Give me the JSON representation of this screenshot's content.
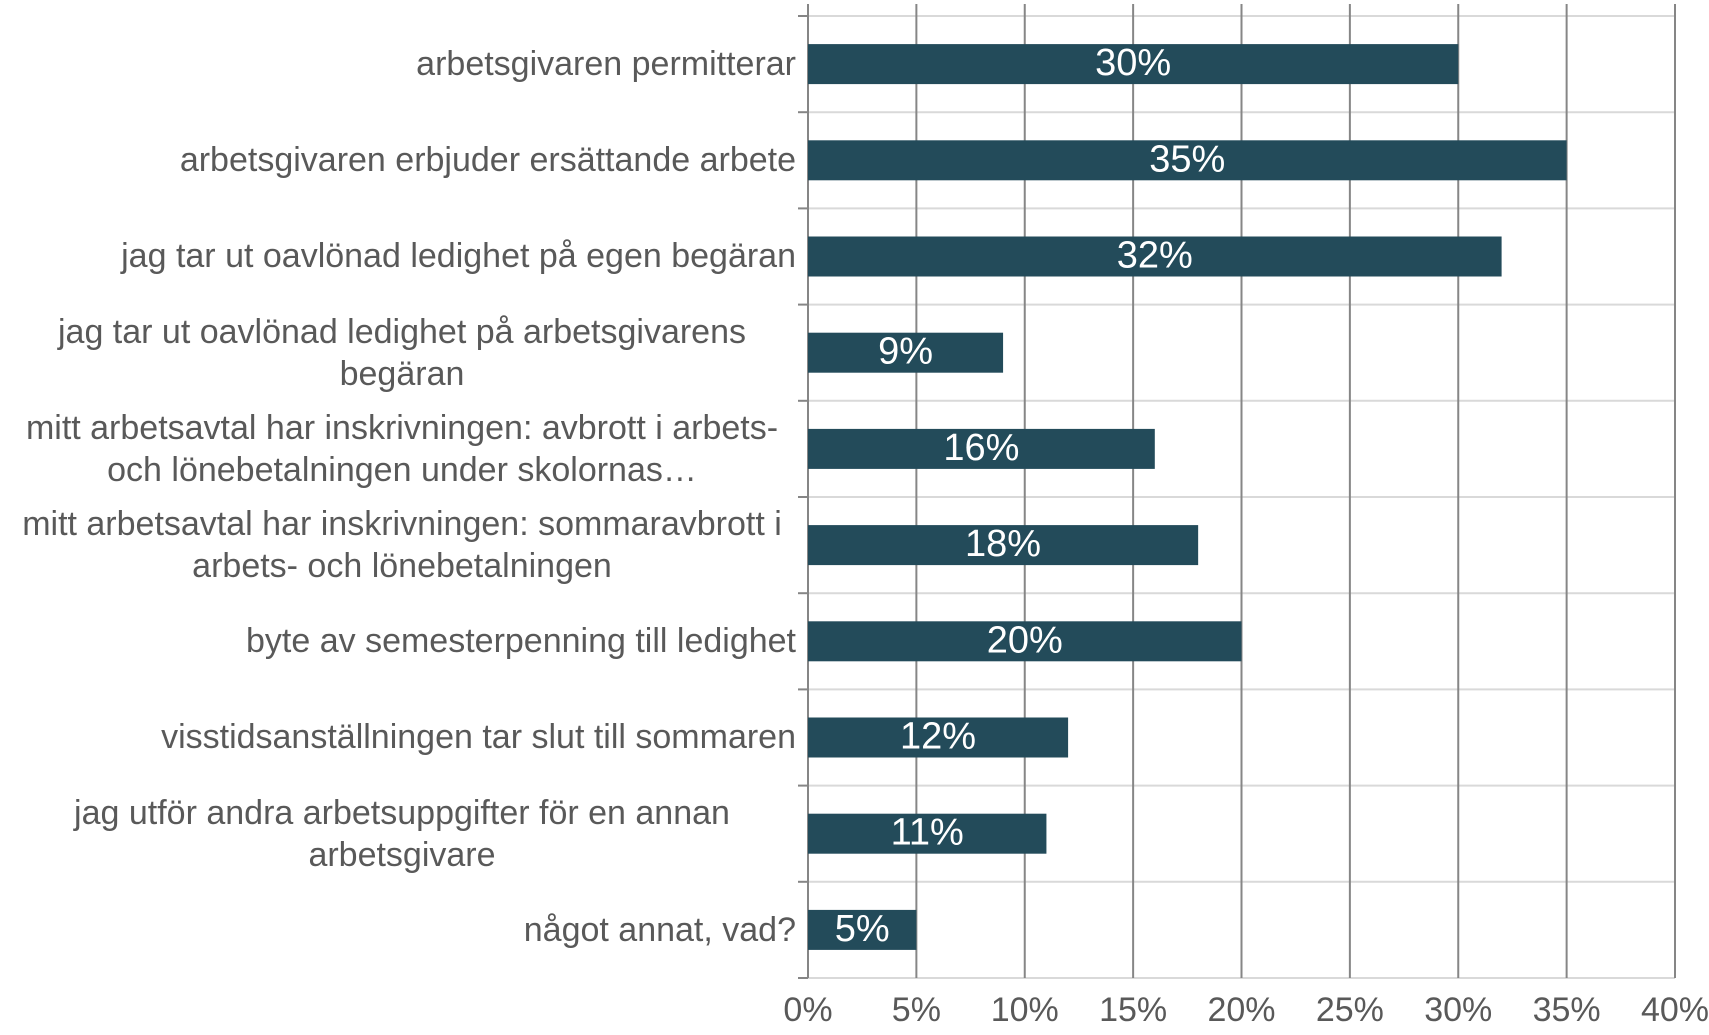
{
  "chart_data": {
    "type": "bar",
    "orientation": "horizontal",
    "categories": [
      "arbetsgivaren permitterar",
      "arbetsgivaren erbjuder ersättande arbete",
      "jag tar ut oavlönad ledighet på egen begäran",
      "jag tar ut oavlönad ledighet på arbetsgivarens begäran",
      "mitt arbetsavtal har inskrivningen: avbrott i arbets- och lönebetalningen under skolornas…",
      "mitt arbetsavtal har inskrivningen: sommaravbrott i arbets- och lönebetalningen",
      "byte av semesterpenning till ledighet",
      "visstidsanställningen tar slut till sommaren",
      "jag utför andra arbetsuppgifter för en annan arbetsgivare",
      "något annat, vad?"
    ],
    "values": [
      30,
      35,
      32,
      9,
      16,
      18,
      20,
      12,
      11,
      5
    ],
    "value_labels": [
      "30%",
      "35%",
      "32%",
      "9%",
      "16%",
      "18%",
      "20%",
      "12%",
      "11%",
      "5%"
    ],
    "color": "#234b5a",
    "xlim": [
      0,
      40
    ],
    "xticks": [
      {
        "value": 0,
        "label": "0%"
      },
      {
        "value": 5,
        "label": "5%"
      },
      {
        "value": 10,
        "label": "10%"
      },
      {
        "value": 15,
        "label": "15%"
      },
      {
        "value": 20,
        "label": "20%"
      },
      {
        "value": 25,
        "label": "25%"
      },
      {
        "value": 30,
        "label": "30%"
      },
      {
        "value": 35,
        "label": "35%"
      },
      {
        "value": 40,
        "label": "40%"
      }
    ],
    "grid": true
  }
}
